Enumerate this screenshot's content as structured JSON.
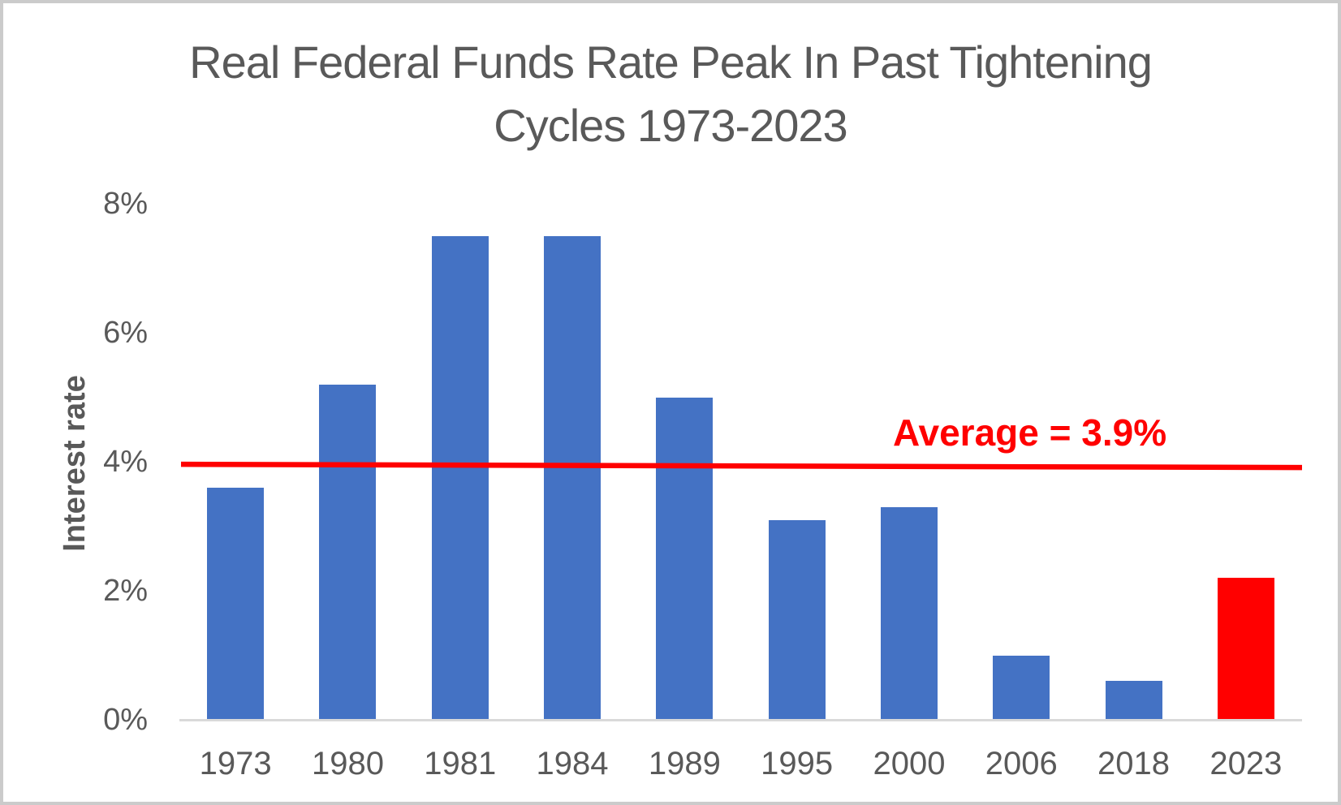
{
  "title": {
    "line1": "Real Federal Funds Rate Peak In Past Tightening",
    "line2": "Cycles 1973-2023"
  },
  "colors": {
    "title_text": "#595959",
    "axis_text": "#595959",
    "axis_line": "#d9d9d9",
    "frame_border": "#cbcbcb",
    "background": "#ffffff"
  },
  "chart_data": {
    "type": "bar",
    "title": "Real Federal Funds Rate Peak In Past Tightening Cycles 1973-2023",
    "xlabel": "",
    "ylabel": "Interest rate",
    "unit": "%",
    "categories": [
      "1973",
      "1980",
      "1981",
      "1984",
      "1989",
      "1995",
      "2000",
      "2006",
      "2018",
      "2023"
    ],
    "values": [
      3.6,
      5.2,
      7.5,
      7.5,
      5.0,
      3.1,
      3.3,
      1.0,
      0.6,
      2.2
    ],
    "ylim": [
      0,
      8
    ],
    "yticks": [
      "0%",
      "2%",
      "4%",
      "6%",
      "8%"
    ],
    "ytick_values": [
      0,
      2,
      4,
      6,
      8
    ],
    "grid": false,
    "legend": "none",
    "bar_color": "#4472C4",
    "highlight_index": 9,
    "highlight_color": "#FF0000",
    "annotation": {
      "label": "Average = 3.9%",
      "average_value": 3.9,
      "line_color": "#FF0000",
      "text_color": "#FF0000",
      "line_value_left": 3.96,
      "line_value_right": 3.91
    }
  }
}
